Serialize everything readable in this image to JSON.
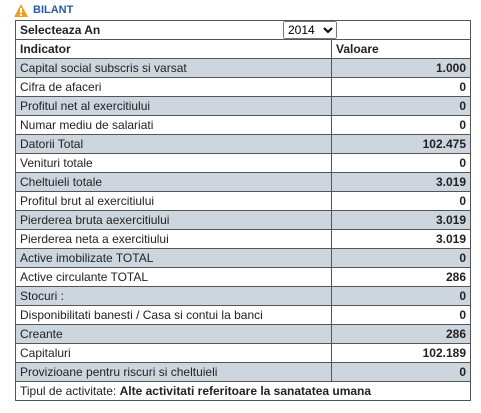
{
  "header": {
    "title": "BILANT"
  },
  "year_select": {
    "label": "Selecteaza An",
    "value": "2014"
  },
  "table": {
    "columns": [
      "Indicator",
      "Valoare"
    ],
    "rows": [
      [
        "Capital social subscris si varsat",
        "1.000"
      ],
      [
        "Cifra de afaceri",
        "0"
      ],
      [
        "Profitul net al exercitiului",
        "0"
      ],
      [
        "Numar mediu de salariati",
        "0"
      ],
      [
        "Datorii Total",
        "102.475"
      ],
      [
        "Venituri totale",
        "0"
      ],
      [
        "Cheltuieli totale",
        "3.019"
      ],
      [
        "Profitul brut al exercitiului",
        "0"
      ],
      [
        "Pierderea bruta aexercitiului",
        "3.019"
      ],
      [
        "Pierderea neta a exercitiului",
        "3.019"
      ],
      [
        "Active imobilizate TOTAL",
        "0"
      ],
      [
        "Active circulante TOTAL",
        "286"
      ],
      [
        "Stocuri :",
        "0"
      ],
      [
        "Disponibilitati banesti / Casa si contui la banci",
        "0"
      ],
      [
        "Creante",
        "286"
      ],
      [
        "Capitaluri",
        "102.189"
      ],
      [
        "Provizioane pentru riscuri si cheltuieli",
        "0"
      ]
    ]
  },
  "footer": {
    "label": "Tipul de activitate:",
    "value": "Alte activitati referitoare la sanatatea umana"
  }
}
